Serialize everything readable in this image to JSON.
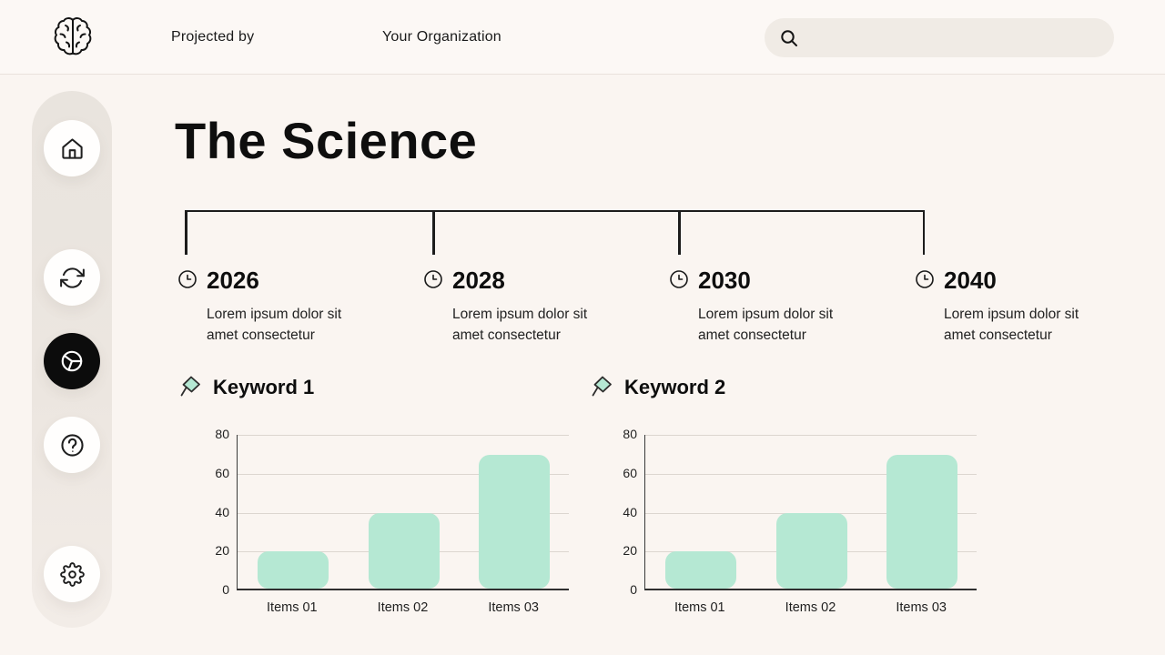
{
  "topbar": {
    "projected_by": "Projected by",
    "organization": "Your Organization"
  },
  "sidebar": {
    "items": [
      {
        "name": "home",
        "active": false
      },
      {
        "name": "refresh",
        "active": false
      },
      {
        "name": "pie-chart",
        "active": true
      },
      {
        "name": "help",
        "active": false
      },
      {
        "name": "settings",
        "active": false
      }
    ]
  },
  "main": {
    "title": "The Science",
    "timeline": [
      {
        "year": "2026",
        "description": "Lorem ipsum dolor sit amet consectetur"
      },
      {
        "year": "2028",
        "description": "Lorem ipsum dolor sit amet consectetur"
      },
      {
        "year": "2030",
        "description": "Lorem ipsum dolor sit amet consectetur"
      },
      {
        "year": "2040",
        "description": "Lorem ipsum dolor sit amet consectetur"
      }
    ]
  },
  "colors": {
    "background": "#faf5f1",
    "accent_mint": "#b5e8d3",
    "active_black": "#0c0c0c",
    "gridline": "#dcd6d0"
  },
  "chart_data": [
    {
      "type": "bar",
      "title": "Keyword 1",
      "categories": [
        "Items 01",
        "Items 02",
        "Items 03"
      ],
      "values": [
        19,
        39,
        69
      ],
      "ylim": [
        0,
        80
      ],
      "yticks": [
        0,
        20,
        40,
        60,
        80
      ],
      "grid": true,
      "legend": false,
      "bar_color": "#b5e8d3"
    },
    {
      "type": "bar",
      "title": "Keyword 2",
      "categories": [
        "Items 01",
        "Items 02",
        "Items 03"
      ],
      "values": [
        19,
        39,
        69
      ],
      "ylim": [
        0,
        80
      ],
      "yticks": [
        0,
        20,
        40,
        60,
        80
      ],
      "grid": true,
      "legend": false,
      "bar_color": "#b5e8d3"
    }
  ]
}
